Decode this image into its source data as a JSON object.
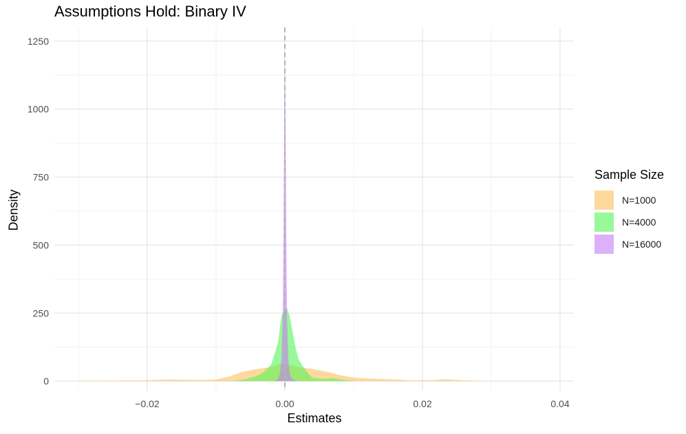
{
  "chart_data": {
    "type": "area",
    "title": "Assumptions Hold: Binary IV",
    "xlabel": "Estimates",
    "ylabel": "Density",
    "xlim": [
      -0.0335,
      0.042
    ],
    "ylim": [
      -35,
      1300
    ],
    "x_ticks": [
      -0.02,
      0.0,
      0.02,
      0.04
    ],
    "x_tick_labels": [
      "−0.02",
      "0.00",
      "0.02",
      "0.04"
    ],
    "y_ticks": [
      0,
      250,
      500,
      750,
      1000,
      1250
    ],
    "y_tick_labels": [
      "0",
      "250",
      "500",
      "750",
      "1000",
      "1250"
    ],
    "grid": true,
    "reference_line_x": 0.0,
    "legend": {
      "title": "Sample Size",
      "position": "right"
    },
    "series": [
      {
        "name": "N=1000",
        "color": "#FDBF5E",
        "x": [
          -0.03,
          -0.025,
          -0.02,
          -0.017,
          -0.015,
          -0.012,
          -0.01,
          -0.008,
          -0.006,
          -0.004,
          -0.002,
          -0.001,
          0.0,
          0.001,
          0.002,
          0.004,
          0.006,
          0.008,
          0.01,
          0.012,
          0.014,
          0.016,
          0.018,
          0.02,
          0.022,
          0.023,
          0.024,
          0.026,
          0.028,
          0.032,
          0.036,
          0.04
        ],
        "y": [
          1,
          2,
          3,
          6,
          5,
          4,
          6,
          18,
          35,
          45,
          52,
          60,
          62,
          58,
          52,
          45,
          35,
          22,
          13,
          10,
          8,
          6,
          3,
          3,
          4,
          7,
          6,
          3,
          1,
          1,
          1,
          0
        ]
      },
      {
        "name": "N=4000",
        "color": "#55F555",
        "x": [
          -0.008,
          -0.006,
          -0.005,
          -0.004,
          -0.003,
          -0.002,
          -0.001,
          -0.0005,
          0.0,
          0.0003,
          0.0007,
          0.001,
          0.0015,
          0.002,
          0.003,
          0.004,
          0.005,
          0.006,
          0.007,
          0.008,
          0.009,
          0.01
        ],
        "y": [
          0,
          5,
          12,
          20,
          35,
          60,
          140,
          240,
          265,
          270,
          240,
          200,
          130,
          80,
          40,
          12,
          10,
          8,
          12,
          6,
          3,
          0
        ]
      },
      {
        "name": "N=16000",
        "color": "#C77CF7",
        "x": [
          -0.0015,
          -0.001,
          -0.0007,
          -0.0005,
          -0.0003,
          -0.0002,
          -0.0001,
          0.0,
          0.0001,
          0.0002,
          0.0003,
          0.0005,
          0.0007,
          0.001,
          0.0015,
          0.002
        ],
        "y": [
          0,
          8,
          30,
          80,
          250,
          550,
          950,
          1210,
          950,
          550,
          250,
          80,
          30,
          10,
          3,
          0
        ]
      }
    ]
  }
}
